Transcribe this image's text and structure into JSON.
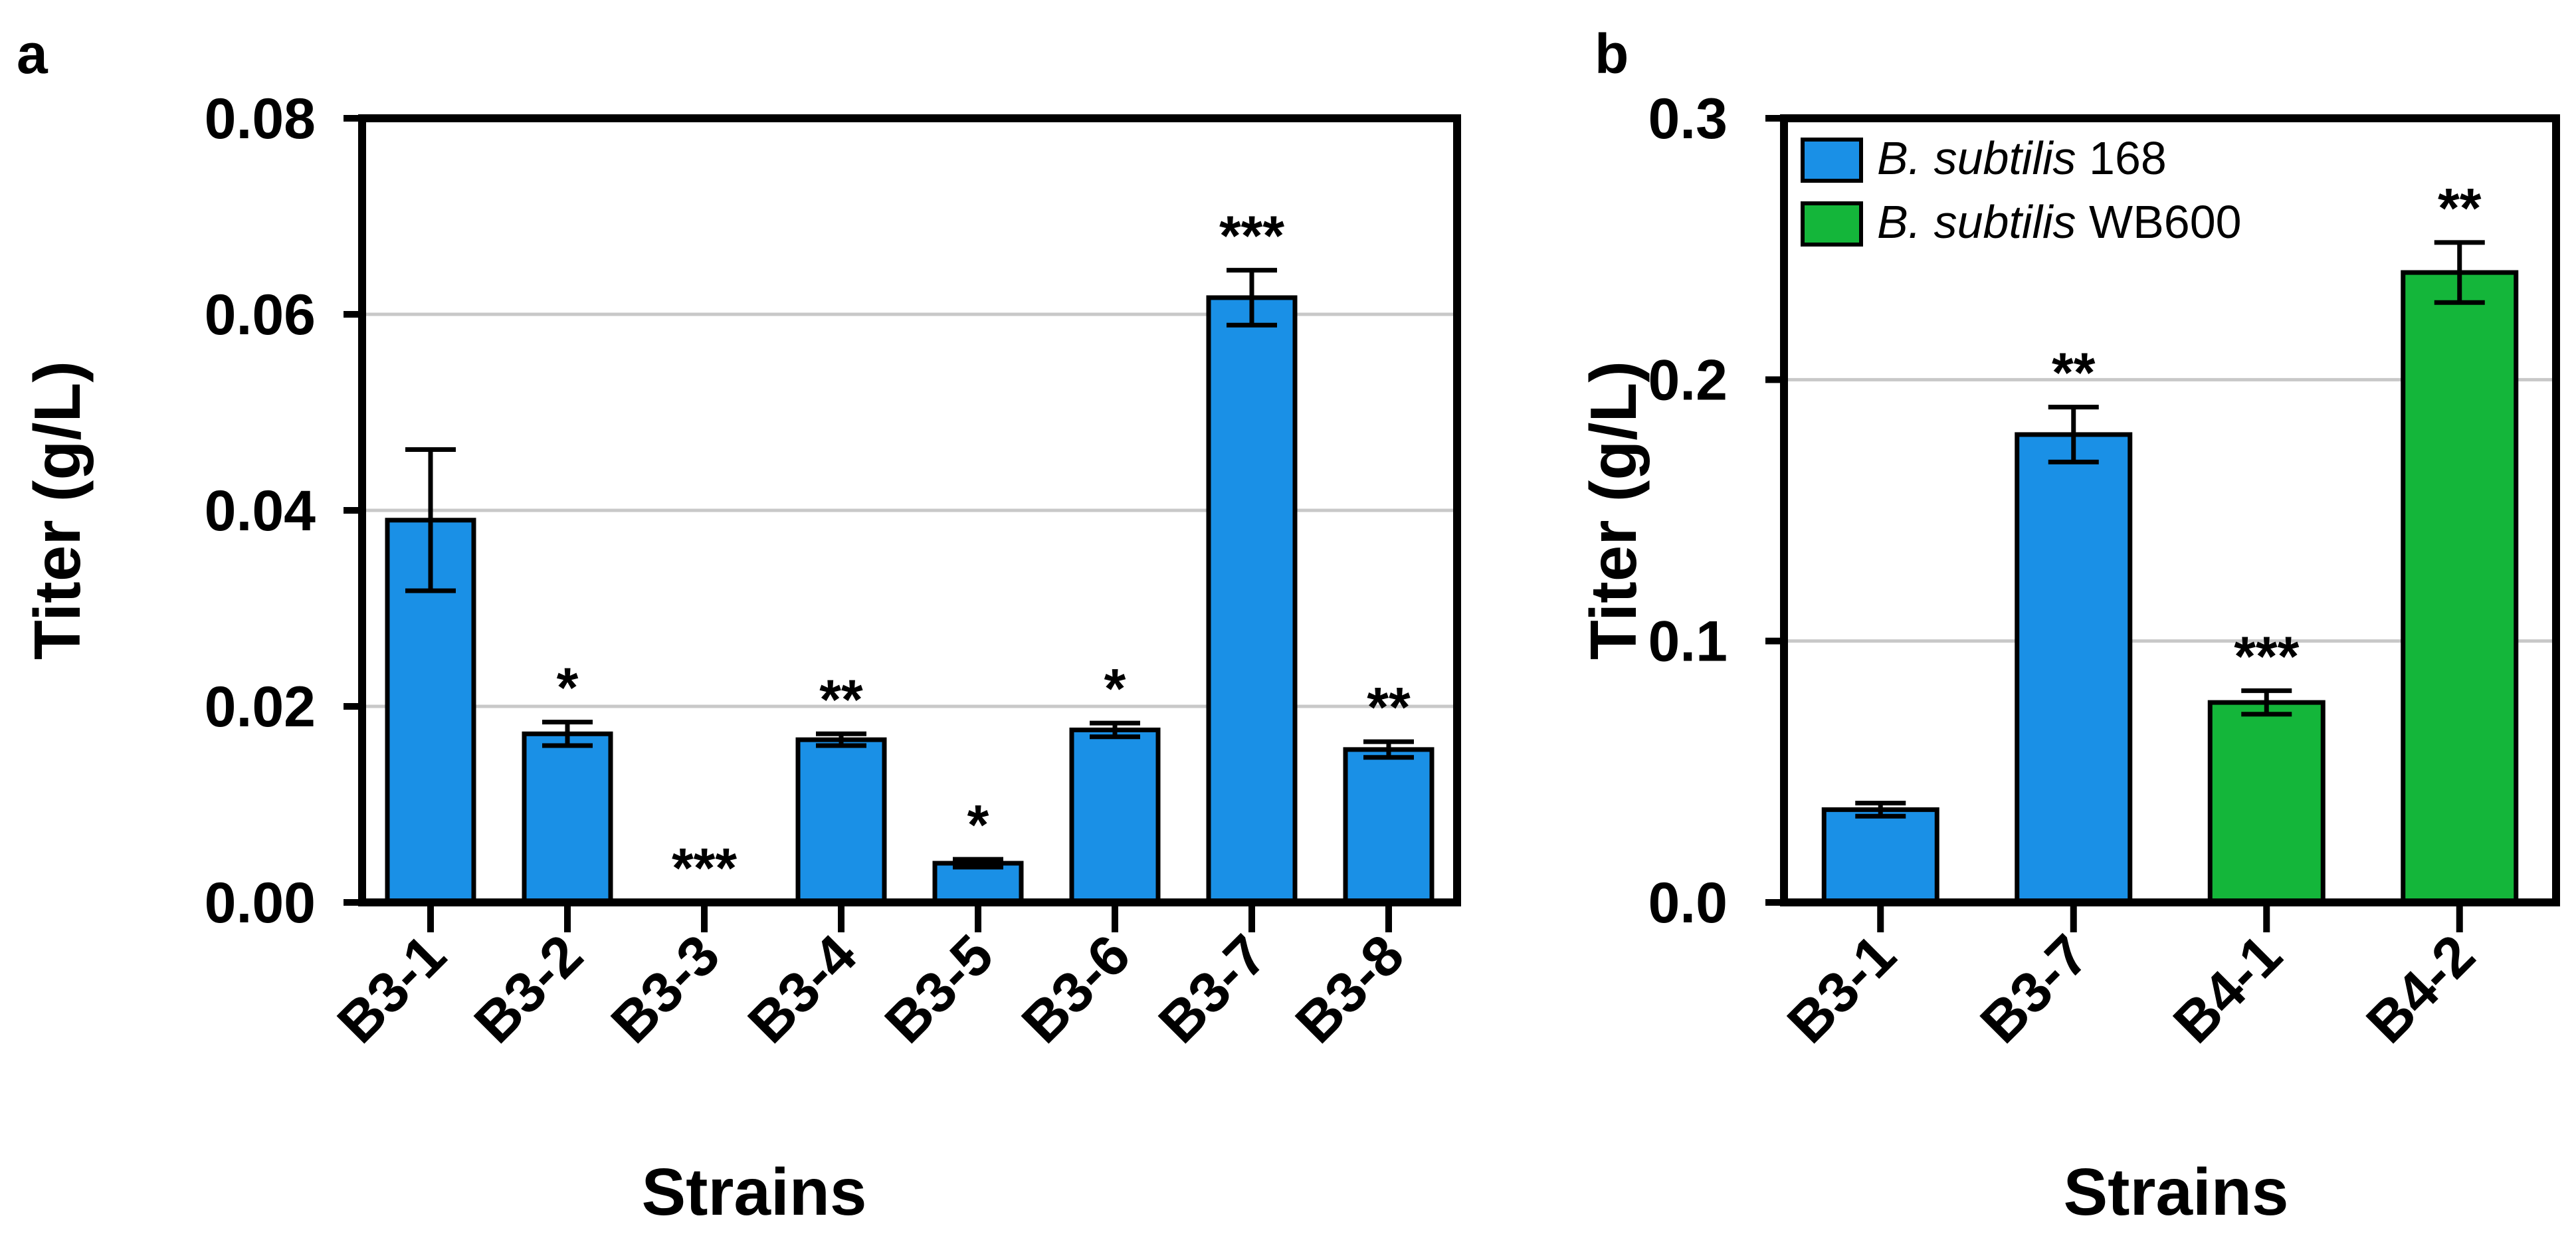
{
  "chart_data": [
    {
      "panel_label": "a",
      "type": "bar",
      "title": "",
      "xlabel": "Strains",
      "ylabel": "Titer (g/L)",
      "ylim": [
        0,
        0.08
      ],
      "yticks": [
        0.0,
        0.02,
        0.04,
        0.06,
        0.08
      ],
      "ytick_labels": [
        "0.00",
        "0.02",
        "0.04",
        "0.06",
        "0.08"
      ],
      "grid_values": [
        0.02,
        0.04,
        0.06
      ],
      "categories": [
        "B3-1",
        "B3-2",
        "B3-3",
        "B3-4",
        "B3-5",
        "B3-6",
        "B3-7",
        "B3-8"
      ],
      "values": [
        0.039,
        0.0172,
        0.0,
        0.0166,
        0.004,
        0.0176,
        0.0617,
        0.0156
      ],
      "errors": [
        0.0072,
        0.0012,
        0.0,
        0.0006,
        0.0004,
        0.0007,
        0.0028,
        0.0008
      ],
      "annotations": [
        "",
        "*",
        "***",
        "**",
        "*",
        "*",
        "***",
        "**"
      ],
      "colors": [
        "#1a90e6",
        "#1a90e6",
        "#1a90e6",
        "#1a90e6",
        "#1a90e6",
        "#1a90e6",
        "#1a90e6",
        "#1a90e6"
      ]
    },
    {
      "panel_label": "b",
      "type": "bar",
      "title": "",
      "xlabel": "Strains",
      "ylabel": "Titer (g/L)",
      "ylim": [
        0,
        0.3
      ],
      "yticks": [
        0.0,
        0.1,
        0.2,
        0.3
      ],
      "ytick_labels": [
        "0.0",
        "0.1",
        "0.2",
        "0.3"
      ],
      "grid_values": [
        0.1,
        0.2
      ],
      "categories": [
        "B3-1",
        "B3-7",
        "B4-1",
        "B4-2"
      ],
      "values": [
        0.0355,
        0.179,
        0.0765,
        0.241
      ],
      "errors": [
        0.0025,
        0.0105,
        0.0045,
        0.0115
      ],
      "annotations": [
        "",
        "**",
        "***",
        "**"
      ],
      "colors": [
        "#1a90e6",
        "#1a90e6",
        "#14b63a",
        "#14b63a"
      ],
      "legend": {
        "position": "top-left",
        "entries": [
          {
            "italic": "B. subtilis",
            "suffix": " 168",
            "color": "#1a90e6"
          },
          {
            "italic": "B. subtilis",
            "suffix": " WB600",
            "color": "#14b63a"
          }
        ]
      }
    }
  ]
}
